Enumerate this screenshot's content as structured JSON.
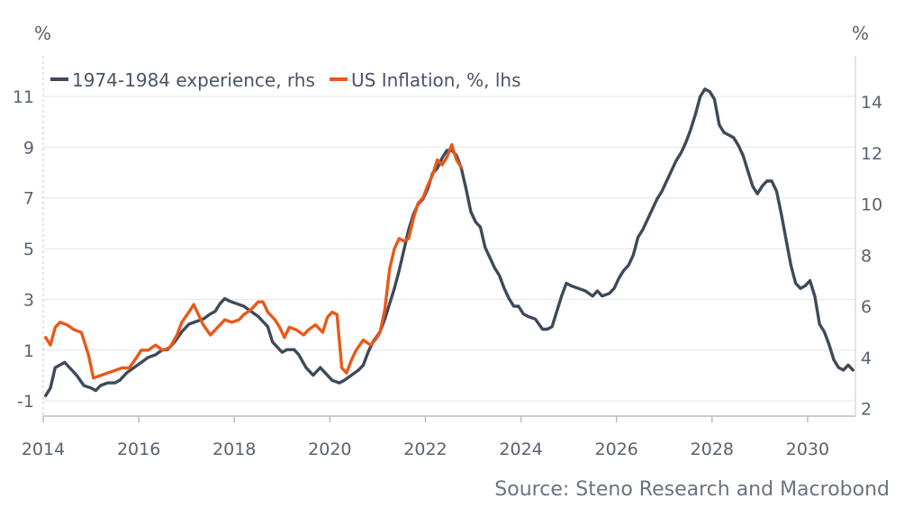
{
  "chart_data": {
    "type": "line",
    "left_axis": {
      "unit_label": "%",
      "range": [
        -1.6,
        12.6
      ],
      "ticks": [
        -1,
        1,
        3,
        5,
        7,
        9,
        11
      ],
      "tick_labels": [
        "-1",
        "1",
        "3",
        "5",
        "7",
        "9",
        "11"
      ]
    },
    "right_axis": {
      "unit_label": "%",
      "range": [
        1.7,
        15.8
      ],
      "ticks": [
        2,
        4,
        6,
        8,
        10,
        12,
        14
      ],
      "tick_labels": [
        "2",
        "4",
        "6",
        "8",
        "10",
        "12",
        "14"
      ]
    },
    "x_axis": {
      "range": [
        2014.0,
        2031.0
      ],
      "ticks": [
        2014,
        2016,
        2018,
        2020,
        2022,
        2024,
        2026,
        2028,
        2030
      ],
      "tick_labels": [
        "2014",
        "2016",
        "2018",
        "2020",
        "2022",
        "2024",
        "2026",
        "2028",
        "2030"
      ]
    },
    "grid": "horizontal",
    "legend_position": "top-left",
    "series": [
      {
        "name": "1974-1984 experience, rhs",
        "axis": "right",
        "color": "#3d4a5c",
        "points": [
          [
            2014.05,
            2.5
          ],
          [
            2014.15,
            2.8
          ],
          [
            2014.25,
            3.6
          ],
          [
            2014.35,
            3.7
          ],
          [
            2014.45,
            3.8
          ],
          [
            2014.55,
            3.6
          ],
          [
            2014.7,
            3.3
          ],
          [
            2014.85,
            2.9
          ],
          [
            2015.0,
            2.8
          ],
          [
            2015.1,
            2.7
          ],
          [
            2015.2,
            2.9
          ],
          [
            2015.35,
            3.0
          ],
          [
            2015.5,
            3.0
          ],
          [
            2015.6,
            3.1
          ],
          [
            2015.75,
            3.4
          ],
          [
            2015.9,
            3.6
          ],
          [
            2016.05,
            3.8
          ],
          [
            2016.2,
            4.0
          ],
          [
            2016.35,
            4.1
          ],
          [
            2016.5,
            4.3
          ],
          [
            2016.6,
            4.3
          ],
          [
            2016.75,
            4.6
          ],
          [
            2016.9,
            5.0
          ],
          [
            2017.05,
            5.3
          ],
          [
            2017.2,
            5.4
          ],
          [
            2017.35,
            5.5
          ],
          [
            2017.5,
            5.7
          ],
          [
            2017.6,
            5.8
          ],
          [
            2017.7,
            6.1
          ],
          [
            2017.8,
            6.3
          ],
          [
            2017.9,
            6.2
          ],
          [
            2018.05,
            6.1
          ],
          [
            2018.2,
            6.0
          ],
          [
            2018.35,
            5.8
          ],
          [
            2018.5,
            5.6
          ],
          [
            2018.6,
            5.4
          ],
          [
            2018.7,
            5.2
          ],
          [
            2018.8,
            4.6
          ],
          [
            2018.9,
            4.4
          ],
          [
            2019.0,
            4.2
          ],
          [
            2019.1,
            4.3
          ],
          [
            2019.25,
            4.3
          ],
          [
            2019.35,
            4.1
          ],
          [
            2019.5,
            3.6
          ],
          [
            2019.65,
            3.3
          ],
          [
            2019.8,
            3.6
          ],
          [
            2019.9,
            3.4
          ],
          [
            2020.05,
            3.1
          ],
          [
            2020.2,
            3.0
          ],
          [
            2020.3,
            3.1
          ],
          [
            2020.45,
            3.3
          ],
          [
            2020.6,
            3.5
          ],
          [
            2020.7,
            3.7
          ],
          [
            2020.8,
            4.2
          ],
          [
            2020.9,
            4.6
          ],
          [
            2021.05,
            5.0
          ],
          [
            2021.15,
            5.5
          ],
          [
            2021.25,
            6.1
          ],
          [
            2021.35,
            6.7
          ],
          [
            2021.45,
            7.4
          ],
          [
            2021.55,
            8.2
          ],
          [
            2021.65,
            9.0
          ],
          [
            2021.75,
            9.6
          ],
          [
            2021.85,
            10.0
          ],
          [
            2021.95,
            10.2
          ],
          [
            2022.05,
            10.6
          ],
          [
            2022.15,
            11.2
          ],
          [
            2022.25,
            11.4
          ],
          [
            2022.35,
            11.8
          ],
          [
            2022.45,
            12.1
          ],
          [
            2022.55,
            12.1
          ],
          [
            2022.65,
            11.9
          ],
          [
            2022.75,
            11.4
          ],
          [
            2022.85,
            10.6
          ],
          [
            2022.95,
            9.7
          ],
          [
            2023.05,
            9.3
          ],
          [
            2023.15,
            9.1
          ],
          [
            2023.25,
            8.3
          ],
          [
            2023.35,
            7.9
          ],
          [
            2023.45,
            7.5
          ],
          [
            2023.55,
            7.2
          ],
          [
            2023.65,
            6.7
          ],
          [
            2023.75,
            6.3
          ],
          [
            2023.85,
            6.0
          ],
          [
            2023.95,
            6.0
          ],
          [
            2024.05,
            5.7
          ],
          [
            2024.15,
            5.6
          ],
          [
            2024.3,
            5.5
          ],
          [
            2024.45,
            5.1
          ],
          [
            2024.55,
            5.1
          ],
          [
            2024.65,
            5.2
          ],
          [
            2024.75,
            5.8
          ],
          [
            2024.85,
            6.4
          ],
          [
            2024.95,
            6.9
          ],
          [
            2025.05,
            6.8
          ],
          [
            2025.2,
            6.7
          ],
          [
            2025.35,
            6.6
          ],
          [
            2025.5,
            6.4
          ],
          [
            2025.6,
            6.6
          ],
          [
            2025.7,
            6.4
          ],
          [
            2025.85,
            6.5
          ],
          [
            2025.95,
            6.7
          ],
          [
            2026.05,
            7.1
          ],
          [
            2026.15,
            7.4
          ],
          [
            2026.25,
            7.6
          ],
          [
            2026.35,
            8.0
          ],
          [
            2026.45,
            8.7
          ],
          [
            2026.55,
            9.0
          ],
          [
            2026.65,
            9.4
          ],
          [
            2026.75,
            9.8
          ],
          [
            2026.85,
            10.2
          ],
          [
            2026.95,
            10.5
          ],
          [
            2027.05,
            10.9
          ],
          [
            2027.15,
            11.3
          ],
          [
            2027.25,
            11.7
          ],
          [
            2027.35,
            12.0
          ],
          [
            2027.45,
            12.4
          ],
          [
            2027.55,
            12.9
          ],
          [
            2027.65,
            13.5
          ],
          [
            2027.75,
            14.2
          ],
          [
            2027.85,
            14.5
          ],
          [
            2027.95,
            14.4
          ],
          [
            2028.05,
            14.1
          ],
          [
            2028.15,
            13.1
          ],
          [
            2028.25,
            12.8
          ],
          [
            2028.35,
            12.7
          ],
          [
            2028.45,
            12.6
          ],
          [
            2028.55,
            12.3
          ],
          [
            2028.65,
            11.9
          ],
          [
            2028.75,
            11.3
          ],
          [
            2028.85,
            10.7
          ],
          [
            2028.95,
            10.4
          ],
          [
            2029.05,
            10.7
          ],
          [
            2029.15,
            10.9
          ],
          [
            2029.25,
            10.9
          ],
          [
            2029.35,
            10.5
          ],
          [
            2029.45,
            9.6
          ],
          [
            2029.55,
            8.6
          ],
          [
            2029.65,
            7.6
          ],
          [
            2029.75,
            6.9
          ],
          [
            2029.85,
            6.7
          ],
          [
            2029.95,
            6.8
          ],
          [
            2030.05,
            7.0
          ],
          [
            2030.15,
            6.4
          ],
          [
            2030.25,
            5.3
          ],
          [
            2030.35,
            5.0
          ],
          [
            2030.45,
            4.5
          ],
          [
            2030.55,
            3.9
          ],
          [
            2030.65,
            3.6
          ],
          [
            2030.75,
            3.5
          ],
          [
            2030.85,
            3.7
          ],
          [
            2030.95,
            3.5
          ]
        ]
      },
      {
        "name": "US Inflation, %, lhs",
        "axis": "left",
        "color": "#e8591a",
        "points": [
          [
            2014.05,
            1.5
          ],
          [
            2014.15,
            1.2
          ],
          [
            2014.25,
            1.9
          ],
          [
            2014.35,
            2.1
          ],
          [
            2014.5,
            2.0
          ],
          [
            2014.65,
            1.8
          ],
          [
            2014.8,
            1.7
          ],
          [
            2014.95,
            0.8
          ],
          [
            2015.05,
            -0.1
          ],
          [
            2015.2,
            0.0
          ],
          [
            2015.35,
            0.1
          ],
          [
            2015.5,
            0.2
          ],
          [
            2015.65,
            0.3
          ],
          [
            2015.8,
            0.3
          ],
          [
            2015.95,
            0.7
          ],
          [
            2016.05,
            1.0
          ],
          [
            2016.2,
            1.0
          ],
          [
            2016.35,
            1.2
          ],
          [
            2016.5,
            1.0
          ],
          [
            2016.65,
            1.1
          ],
          [
            2016.8,
            1.6
          ],
          [
            2016.9,
            2.1
          ],
          [
            2017.05,
            2.5
          ],
          [
            2017.15,
            2.8
          ],
          [
            2017.25,
            2.4
          ],
          [
            2017.35,
            2.0
          ],
          [
            2017.5,
            1.6
          ],
          [
            2017.65,
            1.9
          ],
          [
            2017.8,
            2.2
          ],
          [
            2017.95,
            2.1
          ],
          [
            2018.1,
            2.2
          ],
          [
            2018.2,
            2.4
          ],
          [
            2018.35,
            2.6
          ],
          [
            2018.5,
            2.9
          ],
          [
            2018.6,
            2.9
          ],
          [
            2018.7,
            2.5
          ],
          [
            2018.85,
            2.2
          ],
          [
            2018.95,
            1.9
          ],
          [
            2019.05,
            1.5
          ],
          [
            2019.15,
            1.9
          ],
          [
            2019.3,
            1.8
          ],
          [
            2019.45,
            1.6
          ],
          [
            2019.55,
            1.8
          ],
          [
            2019.7,
            2.0
          ],
          [
            2019.85,
            1.7
          ],
          [
            2019.95,
            2.3
          ],
          [
            2020.05,
            2.5
          ],
          [
            2020.15,
            2.4
          ],
          [
            2020.25,
            0.3
          ],
          [
            2020.35,
            0.1
          ],
          [
            2020.45,
            0.6
          ],
          [
            2020.55,
            1.0
          ],
          [
            2020.7,
            1.4
          ],
          [
            2020.85,
            1.2
          ],
          [
            2020.95,
            1.4
          ],
          [
            2021.05,
            1.7
          ],
          [
            2021.15,
            2.6
          ],
          [
            2021.25,
            4.2
          ],
          [
            2021.35,
            5.0
          ],
          [
            2021.45,
            5.4
          ],
          [
            2021.55,
            5.3
          ],
          [
            2021.65,
            5.4
          ],
          [
            2021.75,
            6.2
          ],
          [
            2021.85,
            6.8
          ],
          [
            2021.95,
            7.0
          ],
          [
            2022.05,
            7.5
          ],
          [
            2022.15,
            7.9
          ],
          [
            2022.25,
            8.5
          ],
          [
            2022.35,
            8.3
          ],
          [
            2022.45,
            8.6
          ],
          [
            2022.55,
            9.1
          ],
          [
            2022.65,
            8.5
          ],
          [
            2022.75,
            8.2
          ]
        ]
      }
    ],
    "source": "Source: Steno Research and Macrobond"
  }
}
